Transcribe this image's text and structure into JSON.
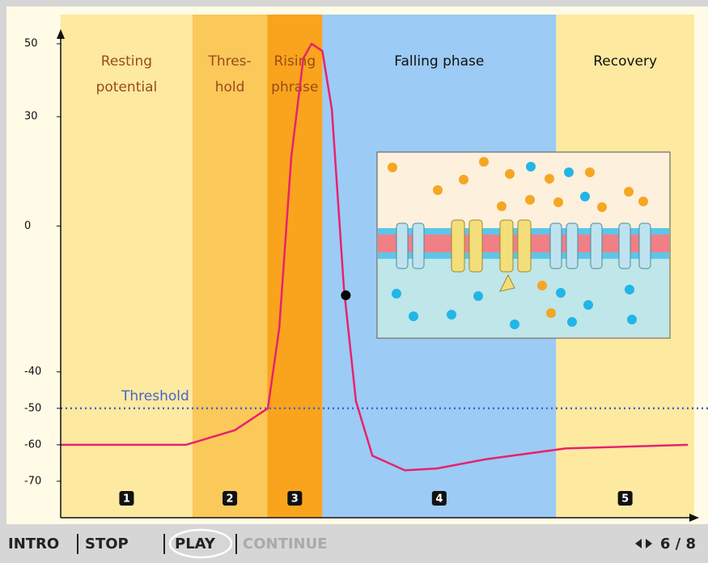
{
  "chart_data": {
    "type": "line",
    "phases": [
      {
        "lines": [
          "Resting",
          "potential"
        ],
        "badge": "1",
        "color": "#fde9a0",
        "text_color": "#9a4a1a",
        "x0": 0,
        "x1": 20.8
      },
      {
        "lines": [
          "Thres-",
          "hold"
        ],
        "badge": "2",
        "color": "#fbc85a",
        "text_color": "#9a4a1a",
        "x0": 20.8,
        "x1": 32.6
      },
      {
        "lines": [
          "Rising",
          "phrase"
        ],
        "badge": "3",
        "color": "#f9a41c",
        "text_color": "#9a4a1a",
        "x0": 32.6,
        "x1": 41.3
      },
      {
        "lines": [
          "Falling phase"
        ],
        "badge": "4",
        "color": "#9ccbf5",
        "text_color": "#111111",
        "x0": 41.3,
        "x1": 78.2
      },
      {
        "lines": [
          "Recovery"
        ],
        "badge": "5",
        "color": "#fde9a0",
        "text_color": "#111111",
        "x0": 78.2,
        "x1": 100
      }
    ],
    "x": [
      0,
      19.8,
      27.5,
      32.7,
      34.5,
      36.4,
      38.3,
      39.6,
      41.3,
      42.8,
      44.7,
      46.6,
      49.2,
      54.3,
      59.4,
      67,
      79.7,
      99
    ],
    "values": [
      -60,
      -60,
      -56,
      -50,
      -28,
      19,
      46,
      50,
      48,
      32,
      -17,
      -48,
      -63,
      -67,
      -66.5,
      -64,
      -61,
      -60
    ],
    "color": "#e8226e",
    "marker": {
      "x": 45,
      "y": -19
    },
    "threshold": {
      "label": "Threshold",
      "value": -50,
      "color": "#4466cc"
    },
    "xlim": [
      0,
      100
    ],
    "ylim": [
      -80,
      58
    ],
    "yticks": [
      50,
      30,
      0,
      -40,
      -50,
      -60,
      -70
    ]
  },
  "toolbar": {
    "buttons": [
      "INTRO",
      "STOP",
      "PLAY",
      "CONTINUE"
    ],
    "page": "6 / 8"
  }
}
